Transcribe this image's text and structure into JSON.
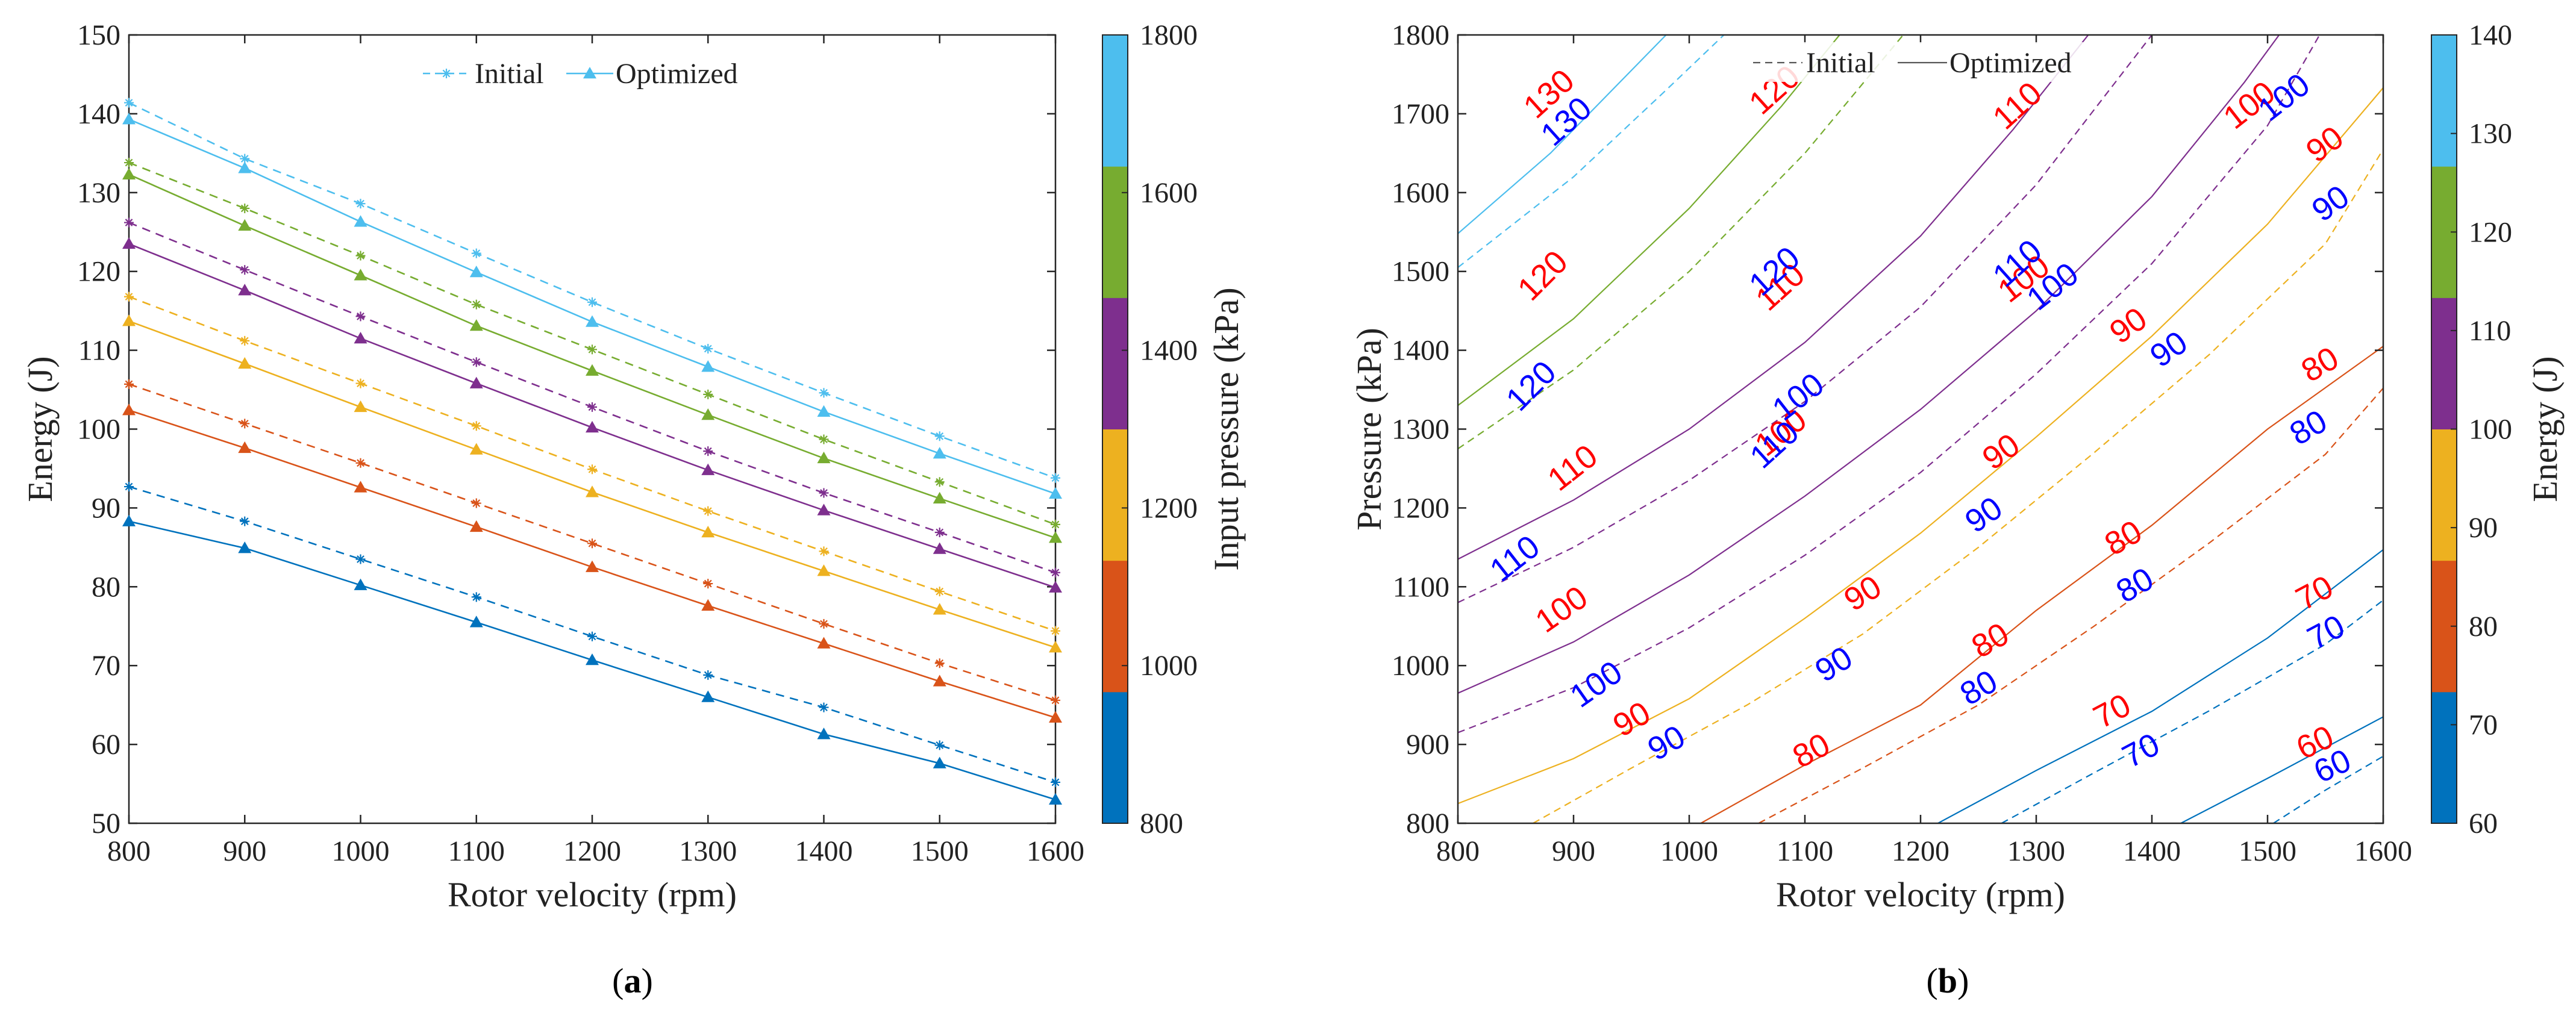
{
  "panels": {
    "a": {
      "prefix": "(",
      "letter": "a",
      "suffix": ")"
    },
    "b": {
      "prefix": "(",
      "letter": "b",
      "suffix": ")"
    }
  },
  "chart_data": [
    {
      "type": "line",
      "title": "",
      "xlabel": "Rotor velocity (rpm)",
      "ylabel": "Energy (J)",
      "xlim": [
        800,
        1600
      ],
      "ylim": [
        50,
        150
      ],
      "xticks": [
        800,
        900,
        1000,
        1100,
        1200,
        1300,
        1400,
        1500,
        1600
      ],
      "yticks": [
        50,
        60,
        70,
        80,
        90,
        100,
        110,
        120,
        130,
        140,
        150
      ],
      "legend": {
        "position": "top-center",
        "initial": "Initial",
        "optimized": "Optimized"
      },
      "x": [
        800,
        900,
        1000,
        1100,
        1200,
        1300,
        1400,
        1500,
        1600
      ],
      "series": [
        {
          "name": "Initial",
          "pressure": 800,
          "color": "#0072BD",
          "values": [
            92.7,
            88.3,
            83.5,
            78.7,
            73.7,
            68.8,
            64.7,
            59.9,
            55.2
          ]
        },
        {
          "name": "Optimized",
          "pressure": 800,
          "color": "#0072BD",
          "values": [
            88.3,
            84.9,
            80.2,
            75.5,
            70.7,
            66.0,
            61.3,
            57.6,
            53.0
          ]
        },
        {
          "name": "Initial",
          "pressure": 1000,
          "color": "#D95319",
          "values": [
            105.7,
            100.7,
            95.7,
            90.6,
            85.5,
            80.4,
            75.3,
            70.3,
            65.6
          ]
        },
        {
          "name": "Optimized",
          "pressure": 1000,
          "color": "#D95319",
          "values": [
            102.4,
            97.6,
            92.6,
            87.6,
            82.5,
            77.6,
            72.8,
            68.0,
            63.4
          ]
        },
        {
          "name": "Initial",
          "pressure": 1200,
          "color": "#EDB120",
          "values": [
            116.8,
            111.2,
            105.8,
            100.4,
            94.9,
            89.6,
            84.5,
            79.4,
            74.4
          ]
        },
        {
          "name": "Optimized",
          "pressure": 1200,
          "color": "#EDB120",
          "values": [
            113.7,
            108.3,
            102.8,
            97.4,
            92.0,
            86.9,
            82.0,
            77.1,
            72.3
          ]
        },
        {
          "name": "Initial",
          "pressure": 1400,
          "color": "#7E2F8E",
          "values": [
            126.2,
            120.2,
            114.3,
            108.5,
            102.8,
            97.2,
            91.9,
            86.9,
            81.8
          ]
        },
        {
          "name": "Optimized",
          "pressure": 1400,
          "color": "#7E2F8E",
          "values": [
            123.5,
            117.6,
            111.5,
            105.8,
            100.2,
            94.8,
            89.7,
            84.8,
            79.9
          ]
        },
        {
          "name": "Initial",
          "pressure": 1600,
          "color": "#77AC30",
          "values": [
            133.8,
            128.0,
            122.0,
            115.8,
            110.1,
            104.4,
            98.7,
            93.3,
            87.9
          ]
        },
        {
          "name": "Optimized",
          "pressure": 1600,
          "color": "#77AC30",
          "values": [
            132.3,
            125.8,
            119.5,
            113.1,
            107.4,
            101.8,
            96.3,
            91.2,
            86.2
          ]
        },
        {
          "name": "Initial",
          "pressure": 1800,
          "color": "#4DBEEE",
          "values": [
            141.4,
            134.3,
            128.6,
            122.3,
            116.1,
            110.2,
            104.6,
            99.1,
            93.8
          ]
        },
        {
          "name": "Optimized",
          "pressure": 1800,
          "color": "#4DBEEE",
          "values": [
            139.3,
            133.1,
            126.3,
            119.9,
            113.6,
            107.9,
            102.2,
            96.9,
            91.8
          ]
        }
      ],
      "colorbar": {
        "label": "Input pressure (kPa)",
        "range": [
          800,
          1800
        ],
        "ticks": [
          800,
          1000,
          1200,
          1400,
          1600,
          1800
        ],
        "colors": [
          "#0072BD",
          "#D95319",
          "#EDB120",
          "#7E2F8E",
          "#77AC30",
          "#4DBEEE"
        ]
      }
    },
    {
      "type": "contour",
      "title": "",
      "xlabel": "Rotor velocity (rpm)",
      "ylabel": "Pressure (kPa)",
      "xlim": [
        800,
        1600
      ],
      "ylim": [
        800,
        1800
      ],
      "xticks": [
        800,
        900,
        1000,
        1100,
        1200,
        1300,
        1400,
        1500,
        1600
      ],
      "yticks": [
        800,
        900,
        1000,
        1100,
        1200,
        1300,
        1400,
        1500,
        1600,
        1700,
        1800
      ],
      "legend": {
        "position": "top-center",
        "initial": "Initial",
        "optimized": "Optimized"
      },
      "levels": [
        {
          "level": 60,
          "color": "#0072BD",
          "optimized": [
            [
              1425,
              800
            ],
            [
              1500,
              857
            ],
            [
              1600,
              935
            ]
          ],
          "initial": [
            [
              1505,
              800
            ],
            [
              1550,
              842
            ],
            [
              1600,
              885
            ]
          ]
        },
        {
          "level": 70,
          "color": "#0072BD",
          "optimized": [
            [
              1215,
              800
            ],
            [
              1300,
              867
            ],
            [
              1400,
              942
            ],
            [
              1500,
              1035
            ],
            [
              1600,
              1147
            ]
          ],
          "initial": [
            [
              1270,
              800
            ],
            [
              1350,
              864
            ],
            [
              1450,
              943
            ],
            [
              1550,
              1027
            ],
            [
              1600,
              1083
            ]
          ]
        },
        {
          "level": 80,
          "color": "#D95319",
          "optimized": [
            [
              1010,
              800
            ],
            [
              1100,
              874
            ],
            [
              1200,
              950
            ],
            [
              1300,
              1070
            ],
            [
              1400,
              1178
            ],
            [
              1500,
              1300
            ],
            [
              1600,
              1405
            ]
          ],
          "initial": [
            [
              1060,
              800
            ],
            [
              1150,
              870
            ],
            [
              1250,
              950
            ],
            [
              1350,
              1050
            ],
            [
              1450,
              1156
            ],
            [
              1550,
              1268
            ],
            [
              1600,
              1352
            ]
          ]
        },
        {
          "level": 90,
          "color": "#EDB120",
          "optimized": [
            [
              800,
              825
            ],
            [
              900,
              882
            ],
            [
              1000,
              958
            ],
            [
              1100,
              1060
            ],
            [
              1200,
              1168
            ],
            [
              1300,
              1290
            ],
            [
              1400,
              1418
            ],
            [
              1500,
              1560
            ],
            [
              1600,
              1733
            ]
          ],
          "initial": [
            [
              865,
              800
            ],
            [
              950,
              870
            ],
            [
              1050,
              950
            ],
            [
              1150,
              1040
            ],
            [
              1250,
              1150
            ],
            [
              1350,
              1270
            ],
            [
              1450,
              1395
            ],
            [
              1550,
              1535
            ],
            [
              1600,
              1655
            ]
          ]
        },
        {
          "level": 100,
          "color": "#7E2F8E",
          "optimized": [
            [
              800,
              965
            ],
            [
              900,
              1030
            ],
            [
              1000,
              1115
            ],
            [
              1100,
              1215
            ],
            [
              1200,
              1325
            ],
            [
              1300,
              1450
            ],
            [
              1400,
              1595
            ],
            [
              1480,
              1740
            ],
            [
              1510,
              1800
            ]
          ],
          "initial": [
            [
              800,
              915
            ],
            [
              900,
              972
            ],
            [
              1000,
              1048
            ],
            [
              1100,
              1140
            ],
            [
              1200,
              1245
            ],
            [
              1300,
              1370
            ],
            [
              1400,
              1510
            ],
            [
              1500,
              1685
            ],
            [
              1545,
              1800
            ]
          ]
        },
        {
          "level": 110,
          "color": "#7E2F8E",
          "optimized": [
            [
              800,
              1135
            ],
            [
              900,
              1210
            ],
            [
              1000,
              1300
            ],
            [
              1100,
              1410
            ],
            [
              1200,
              1545
            ],
            [
              1280,
              1680
            ],
            [
              1345,
              1800
            ]
          ],
          "initial": [
            [
              800,
              1080
            ],
            [
              900,
              1150
            ],
            [
              1000,
              1235
            ],
            [
              1100,
              1335
            ],
            [
              1200,
              1455
            ],
            [
              1300,
              1610
            ],
            [
              1400,
              1800
            ]
          ]
        },
        {
          "level": 120,
          "color": "#77AC30",
          "optimized": [
            [
              800,
              1330
            ],
            [
              900,
              1440
            ],
            [
              1000,
              1580
            ],
            [
              1080,
              1710
            ],
            [
              1130,
              1800
            ]
          ],
          "initial": [
            [
              800,
              1275
            ],
            [
              900,
              1375
            ],
            [
              1000,
              1500
            ],
            [
              1100,
              1650
            ],
            [
              1185,
              1800
            ]
          ]
        },
        {
          "level": 130,
          "color": "#4DBEEE",
          "optimized": [
            [
              800,
              1548
            ],
            [
              880,
              1650
            ],
            [
              960,
              1770
            ],
            [
              980,
              1800
            ]
          ],
          "initial": [
            [
              800,
              1505
            ],
            [
              900,
              1620
            ],
            [
              980,
              1730
            ],
            [
              1030,
              1800
            ]
          ]
        }
      ],
      "labels": {
        "optimized": [
          {
            "text": "130",
            "x": 885,
            "y": 1715,
            "angle": -42
          },
          {
            "text": "120",
            "x": 1080,
            "y": 1720,
            "angle": -42
          },
          {
            "text": "110",
            "x": 1290,
            "y": 1700,
            "angle": -42
          },
          {
            "text": "100",
            "x": 1490,
            "y": 1700,
            "angle": -38
          },
          {
            "text": "90",
            "x": 1555,
            "y": 1650,
            "angle": -36
          },
          {
            "text": "120",
            "x": 880,
            "y": 1485,
            "angle": -45
          },
          {
            "text": "110",
            "x": 1085,
            "y": 1470,
            "angle": -42
          },
          {
            "text": "100",
            "x": 1295,
            "y": 1480,
            "angle": -38
          },
          {
            "text": "90",
            "x": 1385,
            "y": 1420,
            "angle": -35
          },
          {
            "text": "80",
            "x": 1550,
            "y": 1370,
            "angle": -30
          },
          {
            "text": "110",
            "x": 905,
            "y": 1240,
            "angle": -38
          },
          {
            "text": "100",
            "x": 1085,
            "y": 1285,
            "angle": -38
          },
          {
            "text": "90",
            "x": 1275,
            "y": 1260,
            "angle": -35
          },
          {
            "text": "80",
            "x": 1380,
            "y": 1150,
            "angle": -30
          },
          {
            "text": "70",
            "x": 1545,
            "y": 1080,
            "angle": -28
          },
          {
            "text": "100",
            "x": 895,
            "y": 1060,
            "angle": -35
          },
          {
            "text": "90",
            "x": 1155,
            "y": 1080,
            "angle": -32
          },
          {
            "text": "80",
            "x": 1265,
            "y": 1020,
            "angle": -30
          },
          {
            "text": "70",
            "x": 1370,
            "y": 930,
            "angle": -28
          },
          {
            "text": "60",
            "x": 1545,
            "y": 890,
            "angle": -25
          },
          {
            "text": "90",
            "x": 955,
            "y": 920,
            "angle": -30
          },
          {
            "text": "80",
            "x": 1110,
            "y": 880,
            "angle": -28
          }
        ],
        "initial": [
          {
            "text": "130",
            "x": 900,
            "y": 1680,
            "angle": -42
          },
          {
            "text": "120",
            "x": 1080,
            "y": 1490,
            "angle": -42
          },
          {
            "text": "110",
            "x": 1290,
            "y": 1500,
            "angle": -42
          },
          {
            "text": "100",
            "x": 1520,
            "y": 1710,
            "angle": -38
          },
          {
            "text": "90",
            "x": 1560,
            "y": 1575,
            "angle": -36
          },
          {
            "text": "120",
            "x": 870,
            "y": 1345,
            "angle": -45
          },
          {
            "text": "110",
            "x": 1080,
            "y": 1270,
            "angle": -42
          },
          {
            "text": "100",
            "x": 1320,
            "y": 1470,
            "angle": -38
          },
          {
            "text": "90",
            "x": 1420,
            "y": 1390,
            "angle": -35
          },
          {
            "text": "80",
            "x": 1540,
            "y": 1290,
            "angle": -30
          },
          {
            "text": "110",
            "x": 855,
            "y": 1125,
            "angle": -38
          },
          {
            "text": "100",
            "x": 1100,
            "y": 1330,
            "angle": -38
          },
          {
            "text": "90",
            "x": 1260,
            "y": 1180,
            "angle": -35
          },
          {
            "text": "80",
            "x": 1390,
            "y": 1090,
            "angle": -30
          },
          {
            "text": "70",
            "x": 1555,
            "y": 1030,
            "angle": -28
          },
          {
            "text": "100",
            "x": 925,
            "y": 965,
            "angle": -35
          },
          {
            "text": "90",
            "x": 1130,
            "y": 990,
            "angle": -32
          },
          {
            "text": "80",
            "x": 1255,
            "y": 960,
            "angle": -30
          },
          {
            "text": "70",
            "x": 1395,
            "y": 880,
            "angle": -28
          },
          {
            "text": "60",
            "x": 1560,
            "y": 860,
            "angle": -25
          },
          {
            "text": "90",
            "x": 985,
            "y": 890,
            "angle": -30
          }
        ]
      },
      "colorbar": {
        "label": "Energy (J)",
        "range": [
          60,
          140
        ],
        "ticks": [
          60,
          70,
          80,
          90,
          100,
          110,
          120,
          130,
          140
        ],
        "colors": [
          "#0072BD",
          "#D95319",
          "#EDB120",
          "#7E2F8E",
          "#77AC30",
          "#4DBEEE"
        ]
      }
    }
  ]
}
